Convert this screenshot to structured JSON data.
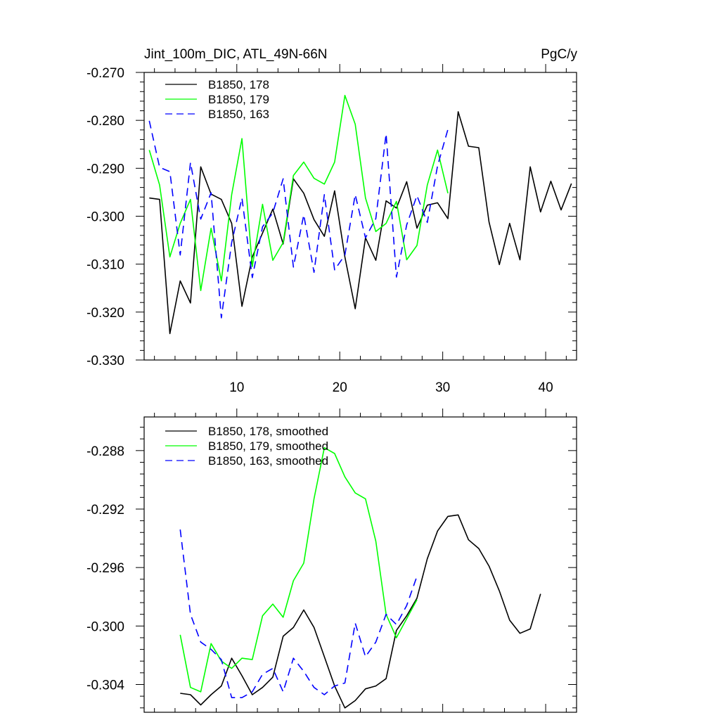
{
  "chart_data": [
    {
      "type": "line",
      "title": "Jint_100m_DIC, ATL_49N-66N",
      "units": "PgC/y",
      "xlabel": "",
      "ylabel": "",
      "xlim": [
        1,
        43
      ],
      "ylim": [
        -0.33,
        -0.27
      ],
      "xticks": [
        10,
        20,
        30,
        40
      ],
      "xtick_labels": [
        "10",
        "20",
        "30",
        "40"
      ],
      "yticks": [
        -0.33,
        -0.32,
        -0.31,
        -0.3,
        -0.29,
        -0.28,
        -0.27
      ],
      "ytick_labels": [
        "-0.330",
        "-0.320",
        "-0.310",
        "-0.300",
        "-0.290",
        "-0.280",
        "-0.270"
      ],
      "legend_position": "top-left",
      "series": [
        {
          "name": "B1850, 178",
          "color": "#000000",
          "dash": "solid",
          "x": [
            1.5,
            2.5,
            3.5,
            4.5,
            5.5,
            6.5,
            7.5,
            8.5,
            9.5,
            10.5,
            11.5,
            12.5,
            13.5,
            14.5,
            15.5,
            16.5,
            17.5,
            18.5,
            19.5,
            20.5,
            21.5,
            22.5,
            23.5,
            24.5,
            25.5,
            26.5,
            27.5,
            28.5,
            29.5,
            30.5,
            31.5,
            32.5,
            33.5,
            34.5,
            35.5,
            36.5,
            37.5,
            38.5,
            39.5,
            40.5,
            41.5,
            42.5
          ],
          "y": [
            -0.2962,
            -0.2965,
            -0.3245,
            -0.3135,
            -0.3181,
            -0.2897,
            -0.2954,
            -0.2965,
            -0.3015,
            -0.3188,
            -0.3085,
            -0.3035,
            -0.2985,
            -0.3058,
            -0.2922,
            -0.2952,
            -0.3007,
            -0.3042,
            -0.2947,
            -0.3085,
            -0.3193,
            -0.3045,
            -0.3092,
            -0.2968,
            -0.2983,
            -0.2928,
            -0.3025,
            -0.2977,
            -0.2972,
            -0.3005,
            -0.2782,
            -0.2854,
            -0.2857,
            -0.3012,
            -0.3101,
            -0.3015,
            -0.3091,
            -0.2897,
            -0.2991,
            -0.2927,
            -0.2987,
            -0.2932
          ]
        },
        {
          "name": "B1850, 179",
          "color": "#00ff00",
          "dash": "solid",
          "x": [
            1.5,
            2.5,
            3.5,
            4.5,
            5.5,
            6.5,
            7.5,
            8.5,
            9.5,
            10.5,
            11.5,
            12.5,
            13.5,
            14.5,
            15.5,
            16.5,
            17.5,
            18.5,
            19.5,
            20.5,
            21.5,
            22.5,
            23.5,
            24.5,
            25.5,
            26.5,
            27.5,
            28.5,
            29.5,
            30.5
          ],
          "y": [
            -0.2862,
            -0.2935,
            -0.3085,
            -0.3015,
            -0.2965,
            -0.3155,
            -0.3025,
            -0.3135,
            -0.2955,
            -0.2838,
            -0.3105,
            -0.2975,
            -0.3092,
            -0.3055,
            -0.2915,
            -0.2887,
            -0.2921,
            -0.2933,
            -0.2887,
            -0.2748,
            -0.2808,
            -0.2962,
            -0.3032,
            -0.3015,
            -0.2969,
            -0.3091,
            -0.3061,
            -0.2935,
            -0.2862,
            -0.2952
          ]
        },
        {
          "name": "B1850, 163",
          "color": "#0000ff",
          "dash": "dashed",
          "x": [
            1.5,
            2.5,
            3.5,
            4.5,
            5.5,
            6.5,
            7.5,
            8.5,
            9.5,
            10.5,
            11.5,
            12.5,
            13.5,
            14.5,
            15.5,
            16.5,
            17.5,
            18.5,
            19.5,
            20.5,
            21.5,
            22.5,
            23.5,
            24.5,
            25.5,
            26.5,
            27.5,
            28.5,
            29.5,
            30.5
          ],
          "y": [
            -0.2801,
            -0.2898,
            -0.2907,
            -0.3081,
            -0.2888,
            -0.3006,
            -0.2951,
            -0.3212,
            -0.3055,
            -0.2962,
            -0.3128,
            -0.3022,
            -0.2993,
            -0.2922,
            -0.3106,
            -0.2997,
            -0.3117,
            -0.2955,
            -0.3112,
            -0.3081,
            -0.2955,
            -0.3045,
            -0.3005,
            -0.2828,
            -0.3127,
            -0.3018,
            -0.2957,
            -0.3013,
            -0.2895,
            -0.2819
          ]
        }
      ]
    },
    {
      "type": "line",
      "title": "",
      "xlabel": "",
      "ylabel": "",
      "xlim": [
        1,
        43
      ],
      "ylim": [
        -0.3059,
        -0.2857
      ],
      "xticks": [
        10,
        20,
        30,
        40
      ],
      "yticks": [
        -0.304,
        -0.3,
        -0.296,
        -0.292,
        -0.288
      ],
      "ytick_labels": [
        "-0.304",
        "-0.300",
        "-0.296",
        "-0.292",
        "-0.288"
      ],
      "legend_position": "top-left",
      "series": [
        {
          "name": "B1850, 178, smoothed",
          "color": "#000000",
          "dash": "solid",
          "x": [
            4.5,
            5.5,
            6.5,
            7.5,
            8.5,
            9.5,
            10.5,
            11.5,
            12.5,
            13.5,
            14.5,
            15.5,
            16.5,
            17.5,
            18.5,
            19.5,
            20.5,
            21.5,
            22.5,
            23.5,
            24.5,
            25.5,
            26.5,
            27.5,
            28.5,
            29.5,
            30.5,
            31.5,
            32.5,
            33.5,
            34.5,
            35.5,
            36.5,
            37.5,
            38.5,
            39.5
          ],
          "y": [
            -0.3046,
            -0.3047,
            -0.3054,
            -0.3047,
            -0.3041,
            -0.3022,
            -0.3034,
            -0.3047,
            -0.3042,
            -0.3035,
            -0.3007,
            -0.3001,
            -0.2989,
            -0.3001,
            -0.3021,
            -0.3041,
            -0.3056,
            -0.3051,
            -0.3043,
            -0.3041,
            -0.3036,
            -0.3003,
            -0.2993,
            -0.2981,
            -0.2954,
            -0.2935,
            -0.2925,
            -0.2924,
            -0.2941,
            -0.2947,
            -0.2959,
            -0.2976,
            -0.2996,
            -0.3005,
            -0.3002,
            -0.2978
          ]
        },
        {
          "name": "B1850, 179, smoothed",
          "color": "#00ff00",
          "dash": "solid",
          "x": [
            4.5,
            5.5,
            6.5,
            7.5,
            8.5,
            9.5,
            10.5,
            11.5,
            12.5,
            13.5,
            14.5,
            15.5,
            16.5,
            17.5,
            18.5,
            19.5,
            20.5,
            21.5,
            22.5,
            23.5,
            24.5,
            25.5,
            26.5,
            27.5
          ],
          "y": [
            -0.3006,
            -0.3042,
            -0.3045,
            -0.3012,
            -0.3024,
            -0.3029,
            -0.3022,
            -0.3023,
            -0.2993,
            -0.2985,
            -0.2994,
            -0.2969,
            -0.2957,
            -0.2913,
            -0.2878,
            -0.2882,
            -0.2898,
            -0.2909,
            -0.2913,
            -0.2942,
            -0.2992,
            -0.3008,
            -0.2995,
            -0.2982
          ]
        },
        {
          "name": "B1850, 163, smoothed",
          "color": "#0000ff",
          "dash": "dashed",
          "x": [
            4.5,
            5.5,
            6.5,
            7.5,
            8.5,
            9.5,
            10.5,
            11.5,
            12.5,
            13.5,
            14.5,
            15.5,
            16.5,
            17.5,
            18.5,
            19.5,
            20.5,
            21.5,
            22.5,
            23.5,
            24.5,
            25.5,
            26.5,
            27.5
          ],
          "y": [
            -0.2934,
            -0.2992,
            -0.3011,
            -0.3016,
            -0.3023,
            -0.3049,
            -0.3049,
            -0.3045,
            -0.3033,
            -0.3029,
            -0.3045,
            -0.3022,
            -0.3031,
            -0.3042,
            -0.3047,
            -0.3041,
            -0.3039,
            -0.2998,
            -0.3021,
            -0.3011,
            -0.2992,
            -0.2999,
            -0.2986,
            -0.2966
          ]
        }
      ]
    }
  ]
}
